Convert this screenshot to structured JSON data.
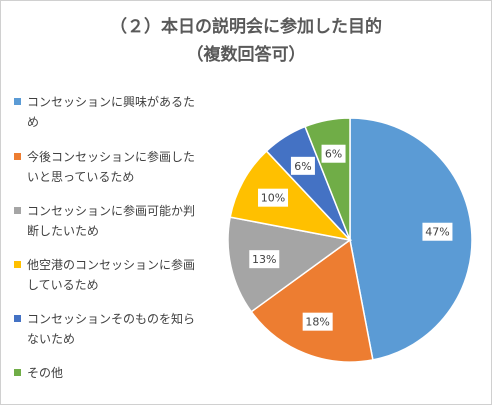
{
  "title_line1": "（２）本日の説明会に参加した目的",
  "title_line2": "（複数回答可）",
  "chart_data": {
    "type": "pie",
    "title": "（２）本日の説明会に参加した目的（複数回答可）",
    "legend_position": "left",
    "slices": [
      {
        "label": "コンセッションに興味があるため",
        "value": 47,
        "data_label": "47%",
        "color": "#5b9bd5"
      },
      {
        "label": "今後コンセッションに参画したいと思っているため",
        "value": 18,
        "data_label": "18%",
        "color": "#ed7d31"
      },
      {
        "label": "コンセッションに参画可能か判断したいため",
        "value": 13,
        "data_label": "13%",
        "color": "#a5a5a5"
      },
      {
        "label": "他空港のコンセッションに参画しているため",
        "value": 10,
        "data_label": "10%",
        "color": "#ffc000"
      },
      {
        "label": "コンセッションそのものを知らないため",
        "value": 6,
        "data_label": "6%",
        "color": "#4472c4"
      },
      {
        "label": "その他",
        "value": 6,
        "data_label": "6%",
        "color": "#70ad47"
      }
    ]
  }
}
